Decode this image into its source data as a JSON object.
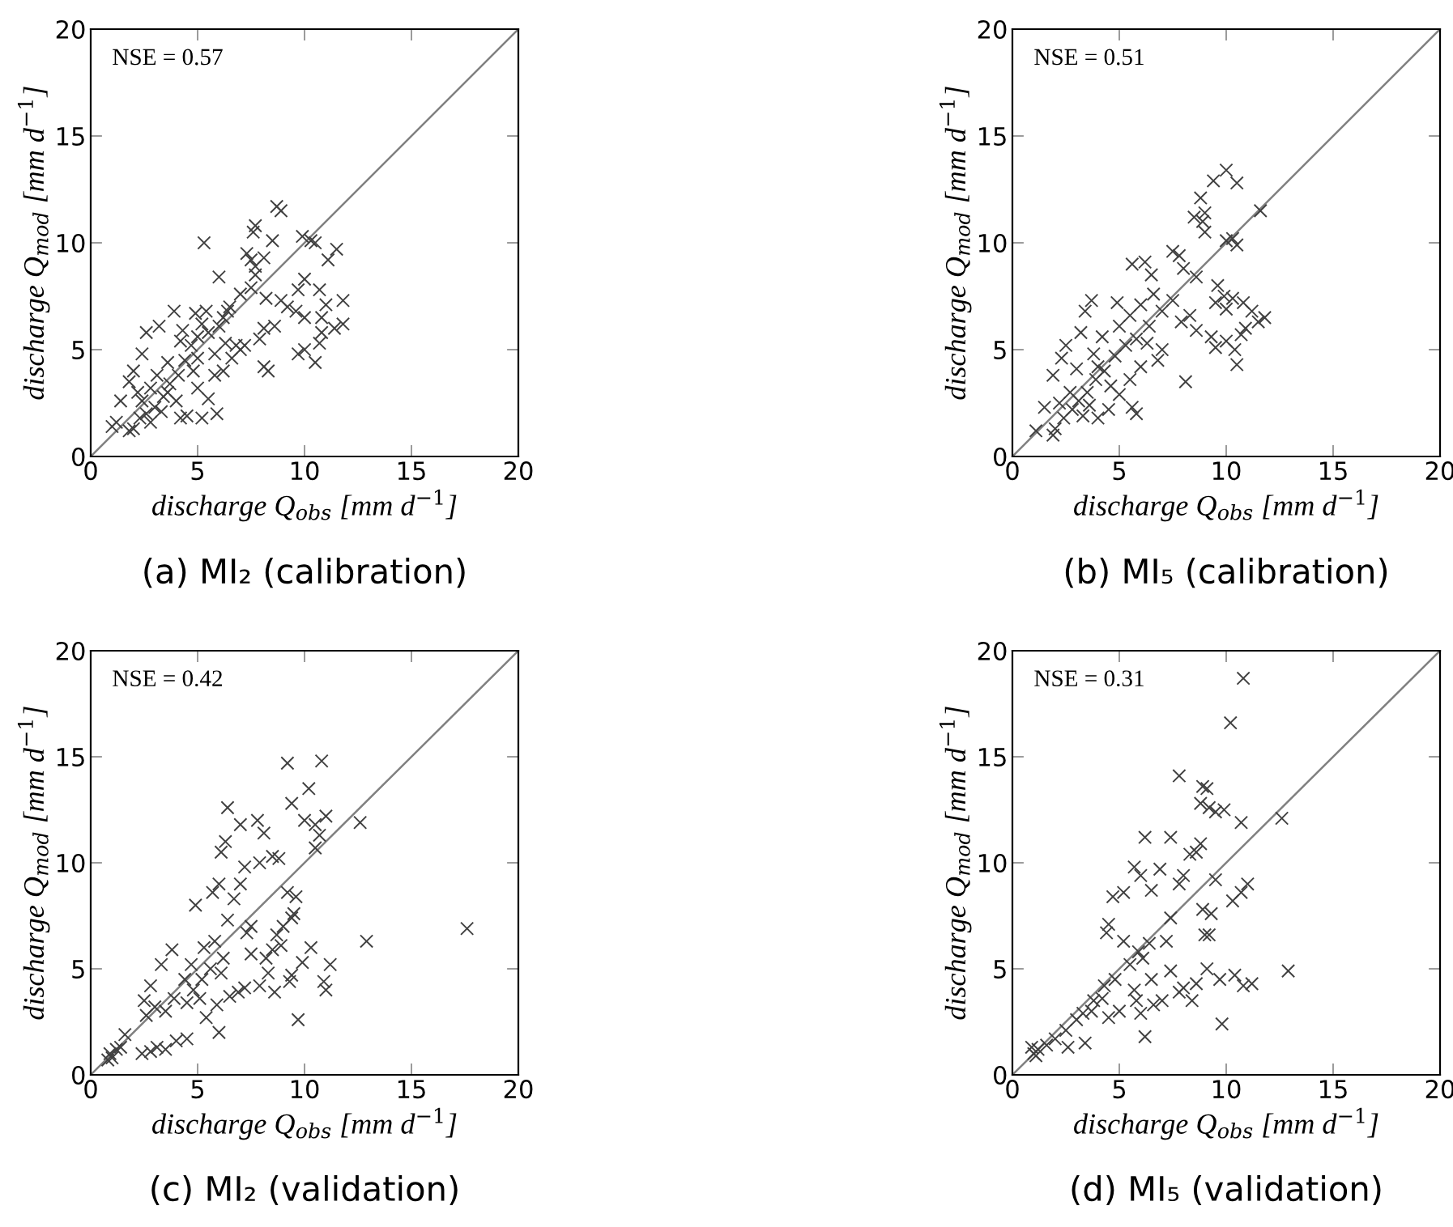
{
  "chart_data": [
    {
      "type": "scatter",
      "title": "(a) MI₂ (calibration)",
      "xlabel": "discharge Q$_{obs}$ [mm d$^{−1}$]",
      "ylabel": "discharge Q$_{mod}$ [mm d$^{−1}$]",
      "annotations": [
        "NSE = 0.57"
      ],
      "xlim": [
        0,
        20
      ],
      "ylim": [
        0,
        20
      ],
      "xticks": [
        0,
        5,
        10,
        15,
        20
      ],
      "yticks": [
        0,
        5,
        10,
        15,
        20
      ],
      "grid": false,
      "marker": "cross",
      "series": [
        {
          "color": "#404040",
          "x": [
            8.7,
            8.9,
            7.7,
            7.6,
            5.3,
            9.9,
            10.3,
            10.5,
            11.5,
            11.1,
            8.5,
            7.3,
            7.5,
            8.1,
            7.7,
            6.0,
            10.0,
            9.7,
            10.7,
            11.0,
            11.8,
            11.8,
            11.4,
            10.8,
            10.8,
            9.6,
            10.0,
            9.2,
            8.9,
            8.6,
            8.2,
            8.1,
            7.9,
            9.7,
            10.0,
            10.5,
            10.7,
            8.1,
            8.3,
            7.2,
            7.0,
            6.8,
            6.5,
            7.0,
            6.2,
            5.4,
            4.9,
            3.9,
            3.2,
            2.6,
            2.4,
            2.0,
            1.8,
            1.4,
            1.0,
            1.2,
            1.8,
            2.0,
            2.3,
            2.6,
            3.0,
            3.4,
            3.7,
            4.1,
            4.4,
            4.7,
            5.0,
            5.5,
            4.2,
            3.6,
            3.1,
            2.8,
            3.3,
            4.2,
            4.5,
            5.2,
            5.9,
            5.5,
            5.0,
            5.8,
            6.2,
            6.6,
            6.3,
            5.8,
            4.8,
            4.0,
            3.6,
            2.4,
            2.2,
            2.8,
            4.3,
            5.2,
            6.0,
            7.5,
            7.7,
            6.4,
            5.0
          ],
          "values": [
            11.7,
            11.5,
            10.8,
            10.5,
            10.0,
            10.3,
            10.1,
            10.0,
            9.7,
            9.2,
            10.1,
            9.5,
            9.2,
            9.3,
            8.9,
            8.4,
            8.3,
            7.8,
            7.8,
            7.1,
            7.3,
            6.2,
            6.0,
            6.5,
            5.8,
            6.8,
            6.5,
            7.0,
            7.3,
            6.1,
            7.4,
            6.0,
            5.5,
            4.8,
            5.0,
            4.4,
            5.3,
            4.2,
            4.0,
            5.2,
            5.0,
            5.2,
            7.0,
            7.6,
            6.5,
            6.8,
            6.7,
            6.8,
            6.1,
            5.8,
            4.8,
            4.0,
            3.5,
            2.6,
            1.4,
            1.6,
            1.2,
            1.3,
            1.8,
            2.0,
            2.3,
            2.8,
            3.4,
            3.8,
            4.5,
            5.2,
            5.6,
            5.8,
            5.4,
            4.4,
            3.8,
            3.2,
            2.1,
            1.8,
            1.9,
            1.8,
            2.0,
            2.7,
            3.2,
            3.8,
            4.0,
            4.6,
            5.3,
            4.8,
            4.0,
            2.6,
            3.0,
            2.6,
            3.0,
            1.6,
            5.9,
            6.2,
            6.1,
            7.9,
            8.5,
            6.8,
            4.6
          ]
        },
        {
          "type": "line",
          "color": "#808080",
          "x": [
            0,
            20
          ],
          "values": [
            0,
            20
          ],
          "marker": "none",
          "line_style": "solid"
        }
      ]
    },
    {
      "type": "scatter",
      "title": "(b) MI₅ (calibration)",
      "xlabel": "discharge Q$_{obs}$ [mm d$^{−1}$]",
      "ylabel": "discharge Q$_{mod}$ [mm d$^{−1}$]",
      "annotations": [
        "NSE = 0.51"
      ],
      "xlim": [
        0,
        20
      ],
      "ylim": [
        0,
        20
      ],
      "xticks": [
        0,
        5,
        10,
        15,
        20
      ],
      "yticks": [
        0,
        5,
        10,
        15,
        20
      ],
      "grid": false,
      "marker": "cross",
      "series": [
        {
          "color": "#404040",
          "x": [
            10.0,
            9.4,
            10.5,
            8.8,
            9.0,
            8.5,
            8.9,
            9.0,
            11.6,
            10.3,
            10.0,
            10.5,
            7.5,
            7.8,
            6.2,
            5.6,
            6.5,
            8.0,
            8.6,
            9.6,
            9.5,
            9.9,
            10.3,
            10.0,
            10.8,
            11.2,
            11.8,
            11.5,
            10.9,
            10.7,
            10.0,
            10.4,
            9.5,
            9.3,
            10.5,
            8.1,
            8.6,
            8.3,
            7.9,
            4.9,
            3.4,
            3.7,
            3.2,
            2.5,
            2.3,
            1.9,
            1.5,
            1.1,
            1.9,
            2.0,
            2.4,
            2.8,
            3.1,
            3.5,
            3.9,
            4.3,
            4.8,
            5.3,
            5.8,
            6.4,
            7.0,
            7.5,
            7.0,
            6.8,
            6.0,
            5.5,
            5.0,
            5.6,
            5.8,
            4.5,
            4.0,
            3.3,
            2.7,
            3.0,
            3.8,
            4.2,
            5.0,
            5.5,
            6.0,
            6.6,
            4.6,
            3.6,
            2.2,
            6.3,
            4.0
          ],
          "values": [
            13.4,
            12.9,
            12.8,
            12.1,
            11.4,
            11.2,
            11.0,
            10.5,
            11.5,
            10.2,
            10.1,
            9.9,
            9.6,
            9.4,
            9.1,
            9.0,
            8.5,
            8.8,
            8.4,
            8.0,
            7.2,
            7.5,
            7.4,
            6.9,
            7.2,
            6.8,
            6.5,
            6.3,
            6.0,
            5.7,
            5.4,
            5.0,
            5.1,
            5.6,
            4.3,
            3.5,
            5.9,
            6.6,
            6.3,
            7.2,
            6.8,
            7.3,
            5.8,
            5.2,
            4.6,
            3.8,
            2.3,
            1.2,
            1.0,
            1.3,
            1.8,
            2.2,
            2.6,
            3.0,
            3.6,
            4.0,
            4.7,
            5.2,
            5.5,
            6.1,
            6.8,
            7.3,
            5.0,
            4.5,
            4.2,
            3.6,
            2.9,
            2.3,
            2.0,
            2.2,
            1.8,
            1.9,
            3.0,
            4.1,
            4.8,
            5.6,
            6.1,
            6.6,
            7.1,
            7.6,
            3.3,
            2.4,
            2.5,
            5.3,
            4.2
          ]
        },
        {
          "type": "line",
          "color": "#808080",
          "x": [
            0,
            20
          ],
          "values": [
            0,
            20
          ],
          "marker": "none",
          "line_style": "solid"
        }
      ]
    },
    {
      "type": "scatter",
      "title": "(c) MI₂ (validation)",
      "xlabel": "discharge Q$_{obs}$ [mm d$^{−1}$]",
      "ylabel": "discharge Q$_{mod}$ [mm d$^{−1}$]",
      "annotations": [
        "NSE = 0.42"
      ],
      "xlim": [
        0,
        20
      ],
      "ylim": [
        0,
        20
      ],
      "xticks": [
        0,
        5,
        10,
        15,
        20
      ],
      "yticks": [
        0,
        5,
        10,
        15,
        20
      ],
      "grid": false,
      "marker": "cross",
      "series": [
        {
          "color": "#404040",
          "x": [
            17.6,
            12.9,
            12.6,
            10.8,
            9.2,
            10.2,
            9.4,
            11.0,
            10.0,
            10.5,
            10.7,
            10.5,
            9.7,
            11.2,
            10.9,
            11.0,
            10.3,
            9.9,
            9.4,
            9.3,
            9.5,
            9.4,
            9.2,
            9.6,
            9.0,
            8.9,
            8.5,
            8.7,
            8.2,
            8.3,
            7.9,
            8.6,
            7.5,
            7.3,
            7.5,
            8.5,
            8.8,
            7.9,
            8.1,
            7.8,
            7.0,
            6.4,
            6.3,
            6.1,
            6.0,
            5.7,
            4.9,
            7.2,
            7.0,
            6.7,
            6.4,
            5.8,
            6.2,
            6.1,
            5.6,
            5.2,
            4.8,
            4.5,
            4.4,
            3.8,
            3.3,
            2.8,
            2.5,
            2.6,
            3.0,
            3.5,
            3.9,
            2.4,
            2.8,
            3.1,
            3.5,
            4.0,
            4.5,
            1.0,
            0.8,
            1.2,
            0.9,
            1.4,
            1.6,
            5.1,
            5.9,
            5.4,
            6.0,
            6.5,
            6.9,
            7.2,
            5.3,
            4.7
          ],
          "values": [
            6.9,
            6.3,
            11.9,
            14.8,
            14.7,
            13.5,
            12.8,
            12.2,
            12.0,
            11.8,
            11.3,
            10.7,
            2.6,
            5.2,
            4.4,
            4.0,
            6.0,
            5.3,
            4.7,
            4.4,
            7.6,
            7.4,
            8.6,
            8.4,
            7.0,
            6.1,
            5.9,
            6.6,
            5.5,
            4.8,
            4.2,
            3.9,
            5.7,
            6.7,
            7.0,
            10.3,
            10.2,
            10.0,
            11.4,
            12.0,
            11.8,
            12.6,
            11.0,
            10.5,
            9.0,
            8.6,
            8.0,
            9.8,
            9.0,
            8.3,
            7.3,
            6.3,
            5.5,
            4.8,
            5.0,
            4.5,
            4.0,
            3.4,
            4.5,
            5.9,
            5.2,
            4.2,
            3.5,
            2.8,
            3.2,
            3.0,
            3.6,
            1.0,
            1.1,
            1.3,
            1.2,
            1.6,
            1.7,
            0.8,
            0.7,
            1.2,
            1.0,
            1.3,
            1.9,
            3.6,
            3.3,
            2.7,
            2.0,
            3.7,
            3.9,
            4.1,
            6.0,
            5.2
          ]
        },
        {
          "type": "line",
          "color": "#808080",
          "x": [
            0,
            20
          ],
          "values": [
            0,
            20
          ],
          "marker": "none",
          "line_style": "solid"
        }
      ]
    },
    {
      "type": "scatter",
      "title": "(d) MI₅ (validation)",
      "xlabel": "discharge Q$_{obs}$ [mm d$^{−1}$]",
      "ylabel": "discharge Q$_{mod}$ [mm d$^{−1}$]",
      "annotations": [
        "NSE = 0.31"
      ],
      "xlim": [
        0,
        20
      ],
      "ylim": [
        0,
        20
      ],
      "xticks": [
        0,
        5,
        10,
        15,
        20
      ],
      "yticks": [
        0,
        5,
        10,
        15,
        20
      ],
      "grid": false,
      "marker": "cross",
      "series": [
        {
          "color": "#404040",
          "x": [
            10.8,
            10.2,
            7.8,
            8.9,
            9.1,
            9.2,
            9.5,
            9.9,
            10.7,
            12.6,
            8.8,
            6.2,
            7.4,
            8.3,
            8.6,
            8.8,
            5.7,
            6.0,
            6.9,
            7.8,
            8.0,
            9.5,
            11.0,
            10.7,
            10.3,
            8.9,
            9.3,
            9.2,
            9.0,
            9.1,
            9.7,
            10.4,
            10.8,
            11.2,
            12.9,
            9.8,
            8.6,
            8.0,
            8.4,
            7.8,
            7.4,
            7.4,
            6.5,
            4.7,
            5.2,
            4.5,
            4.4,
            5.2,
            6.1,
            5.5,
            4.8,
            4.3,
            3.8,
            3.3,
            3.0,
            2.5,
            2.0,
            1.6,
            1.0,
            1.2,
            0.9,
            1.1,
            2.6,
            3.4,
            4.5,
            5.0,
            6.0,
            6.2,
            5.8,
            6.6,
            7.0,
            6.5,
            5.7,
            4.2,
            3.7,
            5.9,
            6.4,
            7.2
          ],
          "values": [
            18.7,
            16.6,
            14.1,
            13.6,
            13.5,
            12.6,
            12.4,
            12.5,
            11.9,
            12.1,
            12.8,
            11.2,
            11.2,
            10.4,
            10.5,
            10.9,
            9.8,
            9.4,
            9.7,
            9.0,
            9.4,
            9.2,
            9.0,
            8.6,
            8.2,
            7.8,
            7.6,
            6.6,
            6.6,
            5.0,
            4.5,
            4.7,
            4.2,
            4.3,
            4.9,
            2.4,
            4.3,
            4.1,
            3.5,
            3.9,
            4.9,
            7.4,
            8.7,
            8.4,
            8.6,
            7.1,
            6.7,
            6.3,
            5.5,
            5.2,
            4.5,
            4.2,
            3.5,
            2.9,
            2.6,
            2.1,
            1.7,
            1.4,
            1.0,
            1.2,
            1.3,
            0.9,
            1.3,
            1.5,
            2.7,
            3.0,
            2.9,
            1.8,
            3.5,
            3.3,
            3.5,
            4.5,
            4.0,
            3.6,
            3.0,
            5.8,
            6.2,
            6.3
          ]
        },
        {
          "type": "line",
          "color": "#808080",
          "x": [
            0,
            20
          ],
          "values": [
            0,
            20
          ],
          "marker": "none",
          "line_style": "solid"
        }
      ]
    }
  ]
}
